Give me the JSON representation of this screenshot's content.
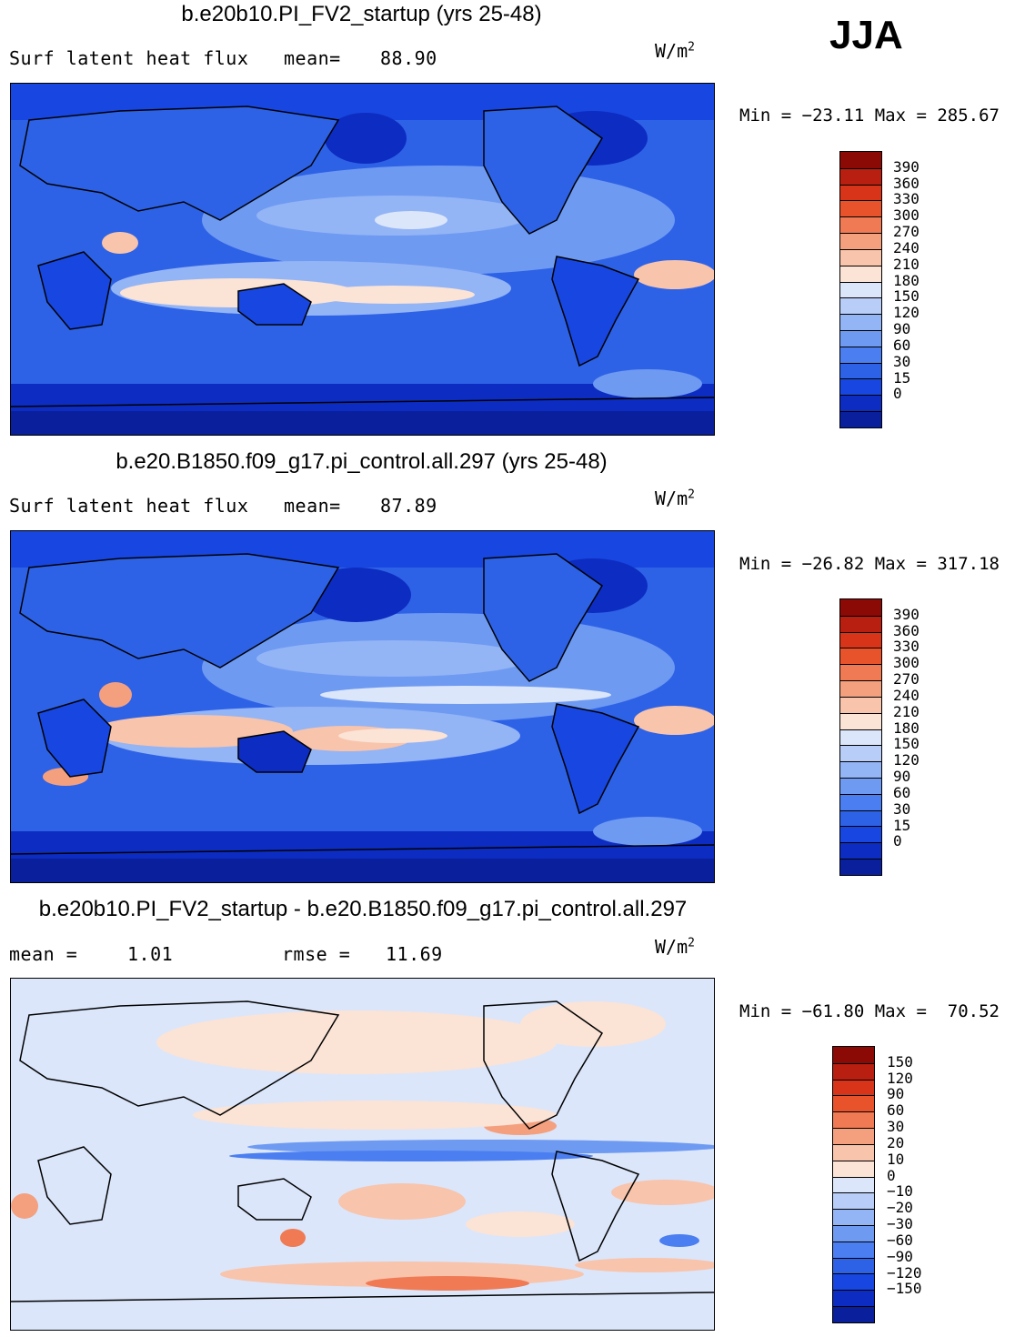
{
  "season": "JJA",
  "colors": {
    "abs_levels": [
      "#0a1f9c",
      "#0d2cc2",
      "#1846e0",
      "#2e62e6",
      "#4b7ef0",
      "#6e9af2",
      "#93b4f5",
      "#b8cdf7",
      "#dbe6fa",
      "#fbe3d6",
      "#f8c4ac",
      "#f4a07f",
      "#f07a54",
      "#e9532c",
      "#d8341a",
      "#b81f10",
      "#8c0a06"
    ],
    "diff_levels": [
      "#0a1f9c",
      "#0d2cc2",
      "#1846e0",
      "#2e62e6",
      "#4b7ef0",
      "#6e9af2",
      "#93b4f5",
      "#b8cdf7",
      "#dbe6fa",
      "#fbe3d6",
      "#f8c4ac",
      "#f4a07f",
      "#f07a54",
      "#e9532c",
      "#d8341a",
      "#b81f10",
      "#8c0a06"
    ]
  },
  "panels": [
    {
      "title": "b.e20b10.PI_FV2_startup (yrs 25-48)",
      "left_label": "Surf latent heat flux",
      "stat_label": "mean=",
      "stat_value": "88.90",
      "units": "W/m",
      "units_exp": "2",
      "min_label": "Min = −23.11 Max = 285.67",
      "colorbar_labels": [
        "390",
        "360",
        "330",
        "300",
        "270",
        "240",
        "210",
        "180",
        "150",
        "120",
        "90",
        "60",
        "30",
        "15",
        "0"
      ]
    },
    {
      "title": "b.e20.B1850.f09_g17.pi_control.all.297 (yrs 25-48)",
      "left_label": "Surf latent heat flux",
      "stat_label": "mean=",
      "stat_value": "87.89",
      "units": "W/m",
      "units_exp": "2",
      "min_label": "Min = −26.82 Max = 317.18",
      "colorbar_labels": [
        "390",
        "360",
        "330",
        "300",
        "270",
        "240",
        "210",
        "180",
        "150",
        "120",
        "90",
        "60",
        "30",
        "15",
        "0"
      ]
    },
    {
      "title": "b.e20b10.PI_FV2_startup - b.e20.B1850.f09_g17.pi_control.all.297",
      "left_label": "mean =",
      "left_value": "1.01",
      "stat_label": "rmse =",
      "stat_value": "11.69",
      "units": "W/m",
      "units_exp": "2",
      "min_label": "Min = −61.80 Max =  70.52",
      "colorbar_labels": [
        "150",
        "120",
        "90",
        "60",
        "30",
        "20",
        "10",
        "0",
        "−10",
        "−20",
        "−30",
        "−60",
        "−90",
        "−120",
        "−150"
      ]
    }
  ],
  "chart_data": [
    {
      "type": "heatmap",
      "title": "b.e20b10.PI_FV2_startup (yrs 25-48)",
      "variable": "Surf latent heat flux",
      "units": "W/m2",
      "mean": 88.9,
      "min": -23.11,
      "max": 285.67,
      "levels": [
        0,
        15,
        30,
        60,
        90,
        120,
        150,
        180,
        210,
        240,
        270,
        300,
        330,
        360,
        390
      ]
    },
    {
      "type": "heatmap",
      "title": "b.e20.B1850.f09_g17.pi_control.all.297 (yrs 25-48)",
      "variable": "Surf latent heat flux",
      "units": "W/m2",
      "mean": 87.89,
      "min": -26.82,
      "max": 317.18,
      "levels": [
        0,
        15,
        30,
        60,
        90,
        120,
        150,
        180,
        210,
        240,
        270,
        300,
        330,
        360,
        390
      ]
    },
    {
      "type": "heatmap",
      "title": "b.e20b10.PI_FV2_startup - b.e20.B1850.f09_g17.pi_control.all.297",
      "units": "W/m2",
      "mean": 1.01,
      "rmse": 11.69,
      "min": -61.8,
      "max": 70.52,
      "levels": [
        -150,
        -120,
        -90,
        -60,
        -30,
        -20,
        -10,
        0,
        10,
        20,
        30,
        60,
        90,
        120,
        150
      ]
    }
  ]
}
